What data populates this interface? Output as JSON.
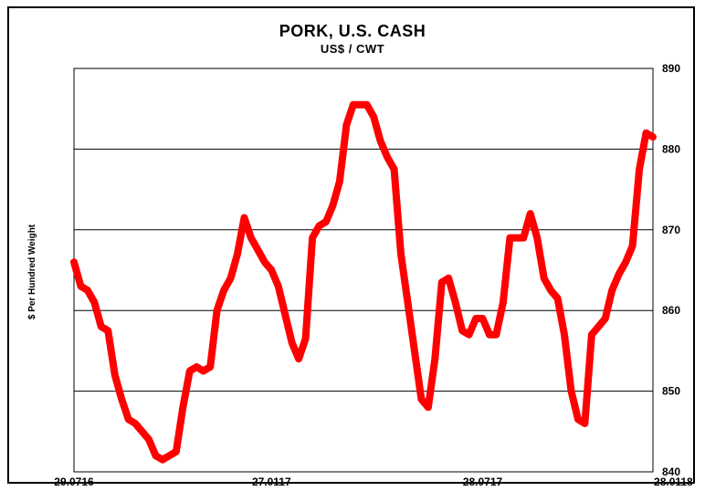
{
  "chart_data": {
    "type": "line",
    "title": "PORK, U.S. CASH",
    "subtitle": "US$ / CWT",
    "ylabel": "$ Per Hundred Weight",
    "xlabel": "",
    "ylim": [
      840,
      890
    ],
    "yticks": [
      "840",
      "850",
      "860",
      "870",
      "880",
      "890"
    ],
    "grid": true,
    "xtick_labels": [
      {
        "label": "29.0716",
        "x": 0
      },
      {
        "label": "27.0117",
        "x": 29
      },
      {
        "label": "28.0717",
        "x": 60
      },
      {
        "label": "28.0118",
        "x": 88
      }
    ],
    "series": [
      {
        "color": "#ff0000",
        "points": [
          [
            0,
            866
          ],
          [
            1,
            863
          ],
          [
            2,
            862.5
          ],
          [
            3,
            861
          ],
          [
            4,
            858
          ],
          [
            5,
            857.5
          ],
          [
            6,
            852
          ],
          [
            7,
            849
          ],
          [
            8,
            846.5
          ],
          [
            9,
            846
          ],
          [
            10,
            845
          ],
          [
            11,
            844
          ],
          [
            12,
            842
          ],
          [
            13,
            841.5
          ],
          [
            14,
            842
          ],
          [
            15,
            842.5
          ],
          [
            16,
            848
          ],
          [
            17,
            852.5
          ],
          [
            18,
            853
          ],
          [
            19,
            852.5
          ],
          [
            20,
            853
          ],
          [
            21,
            860
          ],
          [
            22,
            862.5
          ],
          [
            23,
            864
          ],
          [
            24,
            867
          ],
          [
            25,
            871.5
          ],
          [
            26,
            869
          ],
          [
            27,
            867.5
          ],
          [
            28,
            866
          ],
          [
            29,
            865
          ],
          [
            30,
            863
          ],
          [
            31,
            859.5
          ],
          [
            32,
            856
          ],
          [
            33,
            854
          ],
          [
            34,
            856.5
          ],
          [
            35,
            869
          ],
          [
            36,
            870.5
          ],
          [
            37,
            871
          ],
          [
            38,
            873
          ],
          [
            39,
            876
          ],
          [
            40,
            883
          ],
          [
            41,
            885.5
          ],
          [
            42,
            885.5
          ],
          [
            43,
            885.5
          ],
          [
            44,
            884
          ],
          [
            45,
            881
          ],
          [
            46,
            879
          ],
          [
            47,
            877.5
          ],
          [
            48,
            867
          ],
          [
            49,
            861
          ],
          [
            50,
            855
          ],
          [
            51,
            849
          ],
          [
            52,
            848
          ],
          [
            53,
            854
          ],
          [
            54,
            863.5
          ],
          [
            55,
            864
          ],
          [
            56,
            861
          ],
          [
            57,
            857.5
          ],
          [
            58,
            857
          ],
          [
            59,
            859
          ],
          [
            60,
            859
          ],
          [
            61,
            857
          ],
          [
            62,
            857
          ],
          [
            63,
            861
          ],
          [
            64,
            869
          ],
          [
            65,
            869
          ],
          [
            66,
            869
          ],
          [
            67,
            872
          ],
          [
            68,
            869
          ],
          [
            69,
            864
          ],
          [
            70,
            862.5
          ],
          [
            71,
            861.5
          ],
          [
            72,
            857
          ],
          [
            73,
            850
          ],
          [
            74,
            846.5
          ],
          [
            75,
            846
          ],
          [
            76,
            857
          ],
          [
            77,
            858
          ],
          [
            78,
            859
          ],
          [
            79,
            862.5
          ],
          [
            80,
            864.5
          ],
          [
            81,
            866
          ],
          [
            82,
            868
          ],
          [
            83,
            877.5
          ],
          [
            84,
            882
          ],
          [
            85,
            881.5
          ]
        ]
      }
    ]
  }
}
